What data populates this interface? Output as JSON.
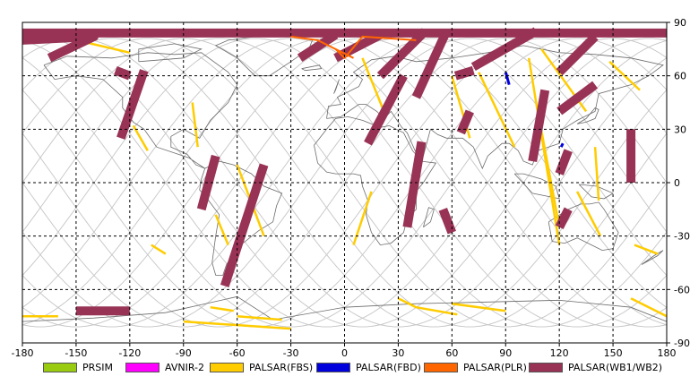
{
  "map": {
    "lon_ticks": [
      "-180",
      "-150",
      "-120",
      "-90",
      "-60",
      "-30",
      "0",
      "30",
      "60",
      "90",
      "120",
      "150",
      "180"
    ],
    "lat_ticks": [
      "90",
      "60",
      "30",
      "0",
      "-30",
      "-60",
      "-90"
    ],
    "lon_range": [
      -180,
      180
    ],
    "lat_range": [
      -90,
      90
    ],
    "grid": "dashed",
    "projection": "equirectangular",
    "colors": {
      "background": "#ffffff",
      "coastline": "#6b6b6b",
      "orbit_track": "#c8c8c8",
      "frame": "#000000"
    }
  },
  "legend": [
    {
      "label": "PRSIM",
      "color": "#99cc11"
    },
    {
      "label": "AVNIR-2",
      "color": "#ff00ff"
    },
    {
      "label": "PALSAR(FBS)",
      "color": "#ffcc00"
    },
    {
      "label": "PALSAR(FBD)",
      "color": "#0000dd"
    },
    {
      "label": "PALSAR(PLR)",
      "color": "#ff6600"
    },
    {
      "label": "PALSAR(WB1/WB2)",
      "color": "#993355"
    }
  ],
  "acquisitions": {
    "wb": [
      [
        [
          -180,
          84
        ],
        [
          180,
          84
        ]
      ],
      [
        [
          -180,
          80
        ],
        [
          -140,
          82
        ],
        [
          -165,
          70
        ]
      ],
      [
        [
          -128,
          63
        ],
        [
          -120,
          60
        ]
      ],
      [
        [
          -112,
          63
        ],
        [
          -125,
          25
        ]
      ],
      [
        [
          -72,
          15
        ],
        [
          -80,
          -15
        ]
      ],
      [
        [
          -45,
          10
        ],
        [
          -67,
          -58
        ]
      ],
      [
        [
          -5,
          83
        ],
        [
          -25,
          70
        ]
      ],
      [
        [
          20,
          83
        ],
        [
          -5,
          70
        ]
      ],
      [
        [
          45,
          85
        ],
        [
          20,
          60
        ]
      ],
      [
        [
          57,
          85
        ],
        [
          40,
          48
        ]
      ],
      [
        [
          33,
          60
        ],
        [
          13,
          22
        ]
      ],
      [
        [
          43,
          23
        ],
        [
          35,
          -25
        ]
      ],
      [
        [
          55,
          -15
        ],
        [
          60,
          -28
        ]
      ],
      [
        [
          70,
          40
        ],
        [
          65,
          28
        ]
      ],
      [
        [
          72,
          63
        ],
        [
          62,
          60
        ]
      ],
      [
        [
          107,
          85
        ],
        [
          72,
          65
        ]
      ],
      [
        [
          112,
          52
        ],
        [
          105,
          12
        ]
      ],
      [
        [
          140,
          82
        ],
        [
          120,
          62
        ]
      ],
      [
        [
          140,
          55
        ],
        [
          120,
          40
        ]
      ],
      [
        [
          125,
          18
        ],
        [
          120,
          5
        ]
      ],
      [
        [
          125,
          -15
        ],
        [
          120,
          -25
        ]
      ],
      [
        [
          160,
          30
        ],
        [
          160,
          0
        ]
      ],
      [
        [
          -150,
          -72
        ],
        [
          -120,
          -72
        ]
      ]
    ],
    "fbs": [
      [
        [
          -150,
          80
        ],
        [
          -120,
          73
        ]
      ],
      [
        [
          -118,
          32
        ],
        [
          -110,
          18
        ]
      ],
      [
        [
          -85,
          45
        ],
        [
          -82,
          20
        ]
      ],
      [
        [
          -72,
          -18
        ],
        [
          -65,
          -35
        ]
      ],
      [
        [
          -60,
          10
        ],
        [
          -45,
          -30
        ]
      ],
      [
        [
          -90,
          -78
        ],
        [
          -30,
          -82
        ]
      ],
      [
        [
          -60,
          -75
        ],
        [
          -35,
          -77
        ]
      ],
      [
        [
          -75,
          -70
        ],
        [
          -62,
          -72
        ]
      ],
      [
        [
          10,
          70
        ],
        [
          22,
          40
        ]
      ],
      [
        [
          15,
          -5
        ],
        [
          5,
          -35
        ]
      ],
      [
        [
          60,
          -68
        ],
        [
          90,
          -72
        ]
      ],
      [
        [
          40,
          -70
        ],
        [
          63,
          -74
        ]
      ],
      [
        [
          30,
          -65
        ],
        [
          40,
          -70
        ]
      ],
      [
        [
          60,
          60
        ],
        [
          70,
          25
        ]
      ],
      [
        [
          75,
          62
        ],
        [
          95,
          20
        ]
      ],
      [
        [
          103,
          70
        ],
        [
          120,
          -35
        ]
      ],
      [
        [
          108,
          40
        ],
        [
          120,
          -25
        ]
      ],
      [
        [
          110,
          75
        ],
        [
          135,
          40
        ]
      ],
      [
        [
          140,
          20
        ],
        [
          142,
          -10
        ]
      ],
      [
        [
          148,
          68
        ],
        [
          165,
          52
        ]
      ],
      [
        [
          130,
          -5
        ],
        [
          143,
          -30
        ]
      ],
      [
        [
          160,
          -65
        ],
        [
          180,
          -75
        ]
      ],
      [
        [
          -180,
          -75
        ],
        [
          -160,
          -75
        ]
      ],
      [
        [
          -108,
          -35
        ],
        [
          -100,
          -40
        ]
      ],
      [
        [
          162,
          -35
        ],
        [
          175,
          -40
        ]
      ]
    ],
    "fbd": [
      [
        [
          90,
          62
        ],
        [
          92,
          55
        ]
      ],
      [
        [
          122,
          22
        ],
        [
          121,
          20
        ]
      ]
    ],
    "plr": [
      [
        [
          -5,
          75
        ],
        [
          0,
          70
        ],
        [
          10,
          82
        ],
        [
          40,
          80
        ]
      ],
      [
        [
          5,
          70
        ],
        [
          -15,
          80
        ],
        [
          -30,
          82
        ]
      ]
    ],
    "orbit_count": 18
  }
}
